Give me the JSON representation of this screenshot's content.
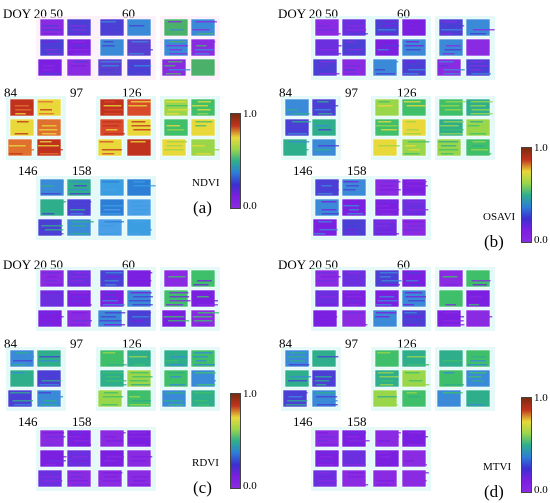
{
  "scale": {
    "max": "1.0",
    "min": "0.0"
  },
  "colormap": [
    "#7a2c0e",
    "#c0321e",
    "#e8d83a",
    "#9ad64a",
    "#2fae8c",
    "#2d7fd6",
    "#3b2fd0",
    "#7b1fe0",
    "#8a2be2"
  ],
  "panels": [
    {
      "key": "a",
      "index": "NDVI",
      "tag": "(a)"
    },
    {
      "key": "b",
      "index": "OSAVI",
      "tag": "(b)"
    },
    {
      "key": "c",
      "index": "RDVI",
      "tag": "(c)"
    },
    {
      "key": "d",
      "index": "MTVI",
      "tag": "(d)"
    }
  ],
  "doy_labels": [
    "DOY 20",
    "50",
    "60",
    "84",
    "97",
    "126",
    "146",
    "158"
  ],
  "plot_palettes": {
    "a": [
      [
        "#8a2be2",
        "#4b3fd6",
        "#7b1fe0"
      ],
      [
        "#4b3fd6",
        "#3a8ad8",
        "#5a3fd0"
      ],
      [
        "#4ab06a",
        "#3a8ad8",
        "#8a2be2"
      ],
      [
        "#c0321e",
        "#e8d83a",
        "#e07030"
      ],
      [
        "#c0321e",
        "#d84a2a",
        "#e8d83a"
      ],
      [
        "#9ad64a",
        "#3fbf6a",
        "#e8d83a"
      ],
      [
        "#3a8ad8",
        "#2fae8c",
        "#4b3fd6"
      ],
      [
        "#3a9ee0",
        "#2d7fd6",
        "#4a9fe8"
      ]
    ],
    "b": [
      [
        "#8a2be2",
        "#6b2fe0",
        "#4b3fd6"
      ],
      [
        "#4b3fd6",
        "#7b1fe0",
        "#3a8ad8"
      ],
      [
        "#4b3fd6",
        "#3a8ad8",
        "#8a2be2"
      ],
      [
        "#3a8ad8",
        "#4b3fd6",
        "#2fae8c"
      ],
      [
        "#9ad64a",
        "#3fbf6a",
        "#e8d83a"
      ],
      [
        "#3fbf6a",
        "#2fae8c",
        "#9ad64a"
      ],
      [
        "#4b3fd6",
        "#3a8ad8",
        "#7b1fe0"
      ],
      [
        "#8a2be2",
        "#7b1fe0",
        "#6b2fe0"
      ]
    ],
    "c": [
      [
        "#8a2be2",
        "#6b2fe0",
        "#7b1fe0"
      ],
      [
        "#4b3fd6",
        "#7b1fe0",
        "#3a8ad8"
      ],
      [
        "#8a2be2",
        "#3fbf6a",
        "#7b1fe0"
      ],
      [
        "#3a8ad8",
        "#2fae8c",
        "#4b3fd6"
      ],
      [
        "#3fbf6a",
        "#2fae8c",
        "#9ad64a"
      ],
      [
        "#2fae8c",
        "#3fbf6a",
        "#3a8ad8"
      ],
      [
        "#8a2be2",
        "#7b1fe0",
        "#6b2fe0"
      ],
      [
        "#8a2be2",
        "#7b1fe0",
        "#8a2be2"
      ]
    ],
    "d": [
      [
        "#8a2be2",
        "#6b2fe0",
        "#7b1fe0"
      ],
      [
        "#4b3fd6",
        "#7b1fe0",
        "#3a8ad8"
      ],
      [
        "#8a2be2",
        "#3fbf6a",
        "#7b1fe0"
      ],
      [
        "#3a8ad8",
        "#2fae8c",
        "#4b3fd6"
      ],
      [
        "#3fbf6a",
        "#2fae8c",
        "#9ad64a"
      ],
      [
        "#2fae8c",
        "#3fbf6a",
        "#3a8ad8"
      ],
      [
        "#8a2be2",
        "#7b1fe0",
        "#6b2fe0"
      ],
      [
        "#8a2be2",
        "#7b1fe0",
        "#8a2be2"
      ]
    ]
  }
}
